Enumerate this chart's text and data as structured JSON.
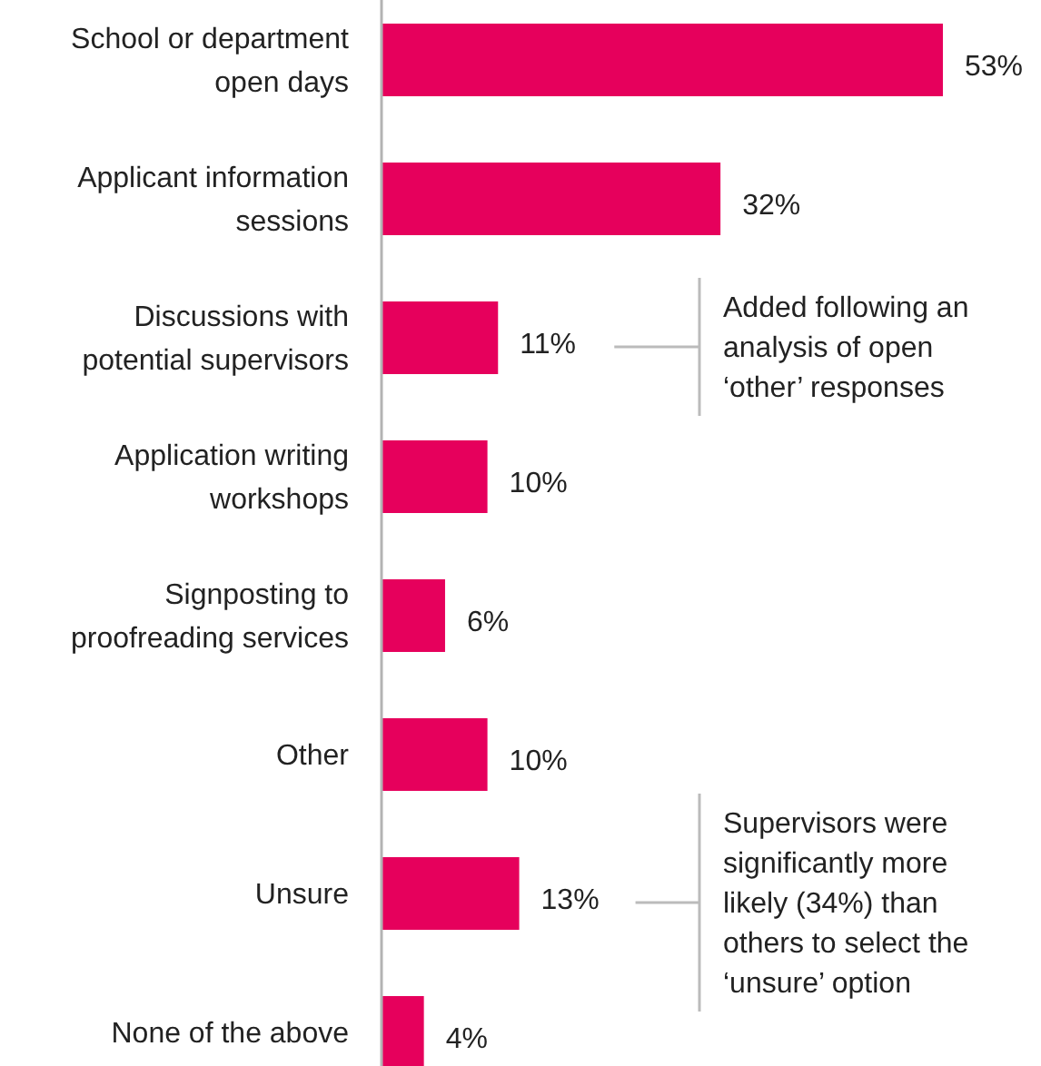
{
  "chart_data": {
    "type": "bar",
    "orientation": "horizontal",
    "categories": [
      "School or department open days",
      "Applicant information sessions",
      "Discussions with potential supervisors",
      "Application writing workshops",
      "Signposting to proofreading services",
      "Other",
      "Unsure",
      "None of the above"
    ],
    "values": [
      53,
      32,
      11,
      10,
      6,
      10,
      13,
      4
    ],
    "value_labels": [
      "53%",
      "32%",
      "11%",
      "10%",
      "6%",
      "10%",
      "13%",
      "4%"
    ],
    "color": "#e6005c",
    "annotations": [
      "Added following an analysis of open ‘other’ responses",
      "Supervisors were significantly more likely (34%) than others to select the ‘unsure’ option"
    ]
  }
}
